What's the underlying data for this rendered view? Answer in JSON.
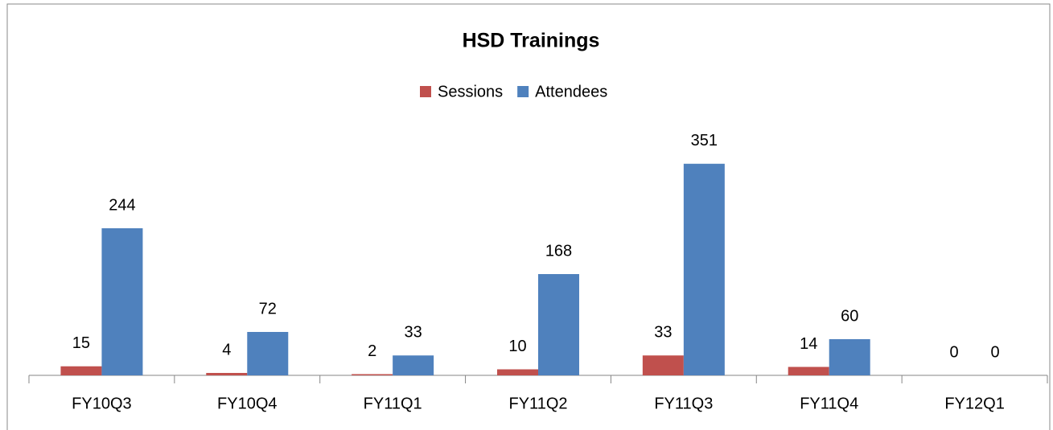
{
  "chart_data": {
    "type": "bar",
    "title": "HSD Trainings",
    "categories": [
      "FY10Q3",
      "FY10Q4",
      "FY11Q1",
      "FY11Q2",
      "FY11Q3",
      "FY11Q4",
      "FY12Q1"
    ],
    "series": [
      {
        "name": "Sessions",
        "color": "#c0504d",
        "values": [
          15,
          4,
          2,
          10,
          33,
          14,
          0
        ]
      },
      {
        "name": "Attendees",
        "color": "#4f81bd",
        "values": [
          244,
          72,
          33,
          168,
          351,
          60,
          0
        ]
      }
    ],
    "ylim": [
      0,
      400
    ],
    "legend": "top"
  }
}
